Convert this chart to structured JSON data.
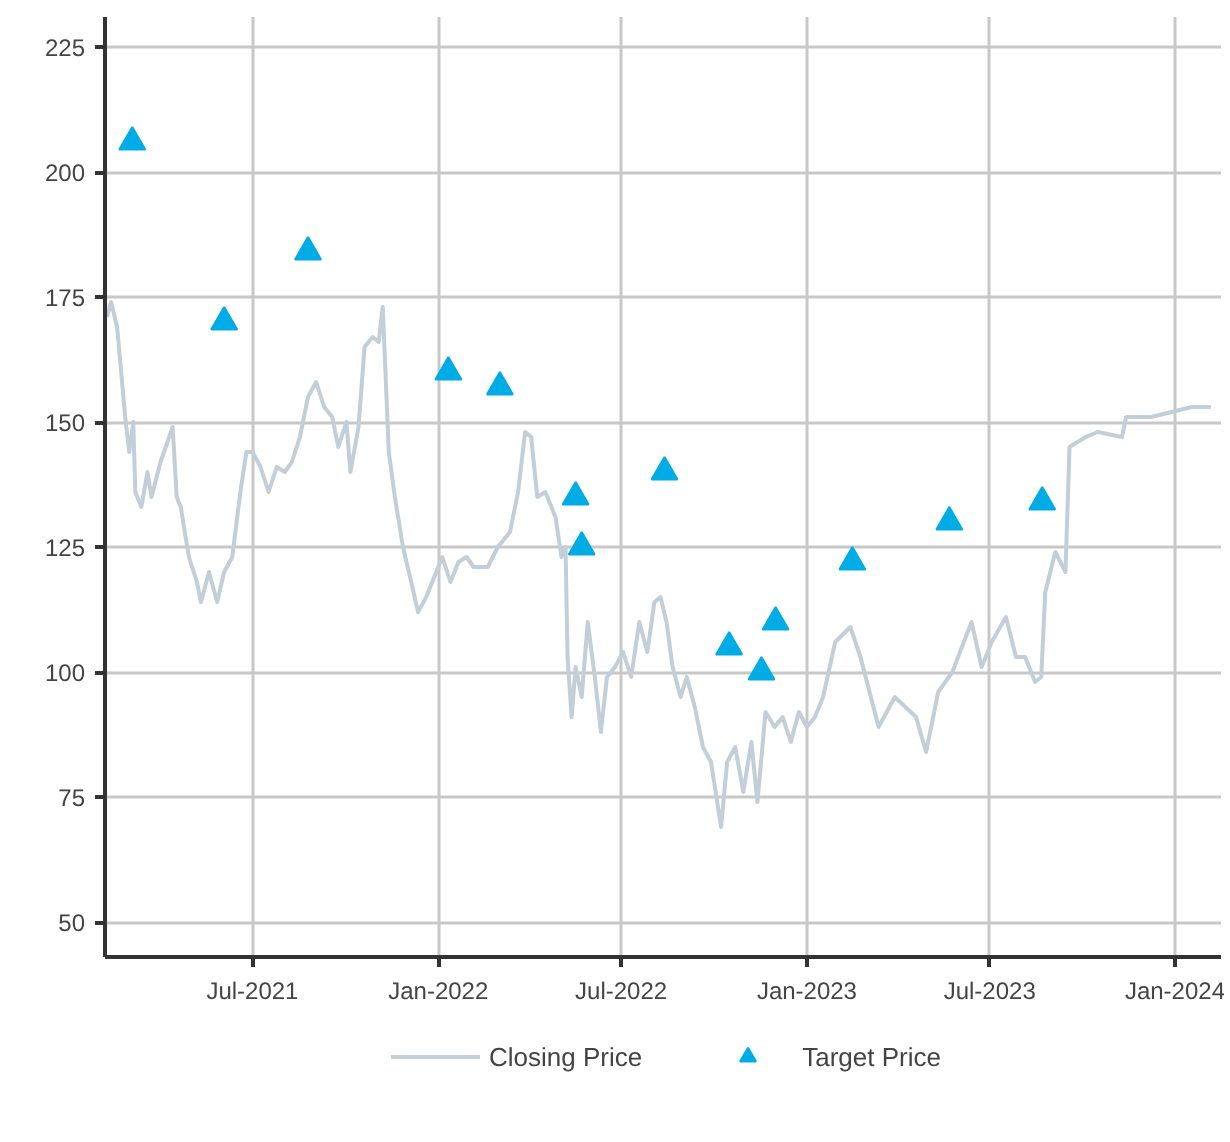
{
  "chart_data": {
    "type": "line",
    "xlim": [
      "2021-02-05",
      "2024-02-15"
    ],
    "ylim": [
      43,
      231
    ],
    "xticks": [
      {
        "value": "2021-07-01",
        "label": "Jul-2021"
      },
      {
        "value": "2022-01-01",
        "label": "Jan-2022"
      },
      {
        "value": "2022-07-01",
        "label": "Jul-2022"
      },
      {
        "value": "2023-01-01",
        "label": "Jan-2023"
      },
      {
        "value": "2023-07-01",
        "label": "Jul-2023"
      },
      {
        "value": "2024-01-01",
        "label": "Jan-2024"
      }
    ],
    "yticks": [
      50,
      75,
      100,
      125,
      150,
      175,
      200,
      225
    ],
    "grid": true,
    "legend": "bottom",
    "series": [
      {
        "name": "Closing Price",
        "color": "#c2cfd8",
        "marker": "none",
        "line_style": "solid",
        "x": [
          "2021-02-07",
          "2021-02-11",
          "2021-02-17",
          "2021-02-25",
          "2021-03-01",
          "2021-03-05",
          "2021-03-07",
          "2021-03-13",
          "2021-03-19",
          "2021-03-23",
          "2021-04-01",
          "2021-04-13",
          "2021-04-17",
          "2021-04-21",
          "2021-04-29",
          "2021-05-07",
          "2021-05-11",
          "2021-05-19",
          "2021-05-27",
          "2021-06-03",
          "2021-06-11",
          "2021-06-19",
          "2021-06-25",
          "2021-07-01",
          "2021-07-09",
          "2021-07-17",
          "2021-07-25",
          "2021-08-02",
          "2021-08-09",
          "2021-08-17",
          "2021-08-25",
          "2021-09-02",
          "2021-09-10",
          "2021-09-18",
          "2021-09-24",
          "2021-10-02",
          "2021-10-06",
          "2021-10-14",
          "2021-10-20",
          "2021-10-28",
          "2021-11-03",
          "2021-11-07",
          "2021-11-13",
          "2021-11-19",
          "2021-11-27",
          "2021-12-04",
          "2021-12-12",
          "2021-12-20",
          "2021-12-28",
          "2022-01-05",
          "2022-01-13",
          "2022-01-21",
          "2022-01-29",
          "2022-02-05",
          "2022-02-19",
          "2022-03-01",
          "2022-03-13",
          "2022-03-21",
          "2022-03-28",
          "2022-04-03",
          "2022-04-09",
          "2022-04-17",
          "2022-04-27",
          "2022-05-03",
          "2022-05-07",
          "2022-05-09",
          "2022-05-13",
          "2022-05-17",
          "2022-05-23",
          "2022-05-29",
          "2022-06-05",
          "2022-06-11",
          "2022-06-17",
          "2022-06-25",
          "2022-07-03",
          "2022-07-11",
          "2022-07-19",
          "2022-07-27",
          "2022-08-03",
          "2022-08-09",
          "2022-08-15",
          "2022-08-21",
          "2022-08-29",
          "2022-09-04",
          "2022-09-12",
          "2022-09-20",
          "2022-09-28",
          "2022-10-08",
          "2022-10-14",
          "2022-10-22",
          "2022-10-30",
          "2022-11-07",
          "2022-11-13",
          "2022-11-21",
          "2022-11-30",
          "2022-12-08",
          "2022-12-16",
          "2022-12-24",
          "2023-01-01",
          "2023-01-09",
          "2023-01-17",
          "2023-01-29",
          "2023-02-13",
          "2023-02-23",
          "2023-03-13",
          "2023-03-29",
          "2023-04-19",
          "2023-04-29",
          "2023-05-11",
          "2023-05-25",
          "2023-06-13",
          "2023-06-23",
          "2023-07-03",
          "2023-07-17",
          "2023-07-27",
          "2023-08-05",
          "2023-08-15",
          "2023-08-21",
          "2023-08-25",
          "2023-09-04",
          "2023-09-14",
          "2023-09-18",
          "2023-10-04",
          "2023-10-16",
          "2023-11-09",
          "2023-11-13",
          "2023-12-08",
          "2024-01-17",
          "2024-02-05"
        ],
        "values": [
          171,
          174,
          169,
          151,
          144,
          150,
          136,
          133,
          140,
          135,
          142,
          149,
          135,
          133,
          123,
          118,
          114,
          120,
          114,
          120,
          123,
          136,
          144,
          144,
          141,
          136,
          141,
          140,
          142,
          147,
          155,
          158,
          153,
          151,
          145,
          150,
          140,
          149,
          165,
          167,
          166,
          173,
          144,
          135,
          125,
          119,
          112,
          115,
          119,
          123,
          118,
          122,
          123,
          121,
          121,
          125,
          128,
          136,
          148,
          147,
          135,
          136,
          131,
          123,
          125,
          103,
          91,
          101,
          95,
          110,
          99,
          88,
          99,
          101,
          104,
          99,
          110,
          104,
          114,
          115,
          110,
          101,
          95,
          99,
          93,
          85,
          82,
          69,
          82,
          85,
          76,
          86,
          74,
          92,
          89,
          91,
          86,
          92,
          89,
          91,
          95,
          106,
          109,
          103,
          89,
          95,
          91,
          84,
          96,
          100,
          110,
          101,
          106,
          111,
          103,
          103,
          98,
          99,
          116,
          124,
          120,
          145,
          147,
          148,
          147,
          151,
          151,
          153,
          153
        ]
      },
      {
        "name": "Target Price",
        "type": "scatter",
        "color": "#00ace6",
        "marker": "triangle",
        "x": [
          "2021-03-04",
          "2021-06-03",
          "2021-08-25",
          "2022-01-11",
          "2022-03-03",
          "2022-05-17",
          "2022-05-23",
          "2022-08-13",
          "2022-10-16",
          "2022-11-17",
          "2022-12-01",
          "2023-02-15",
          "2023-05-22",
          "2023-08-22"
        ],
        "values": [
          206,
          170,
          184,
          160,
          157,
          135,
          125,
          140,
          105,
          100,
          110,
          122,
          130,
          134
        ]
      }
    ]
  }
}
